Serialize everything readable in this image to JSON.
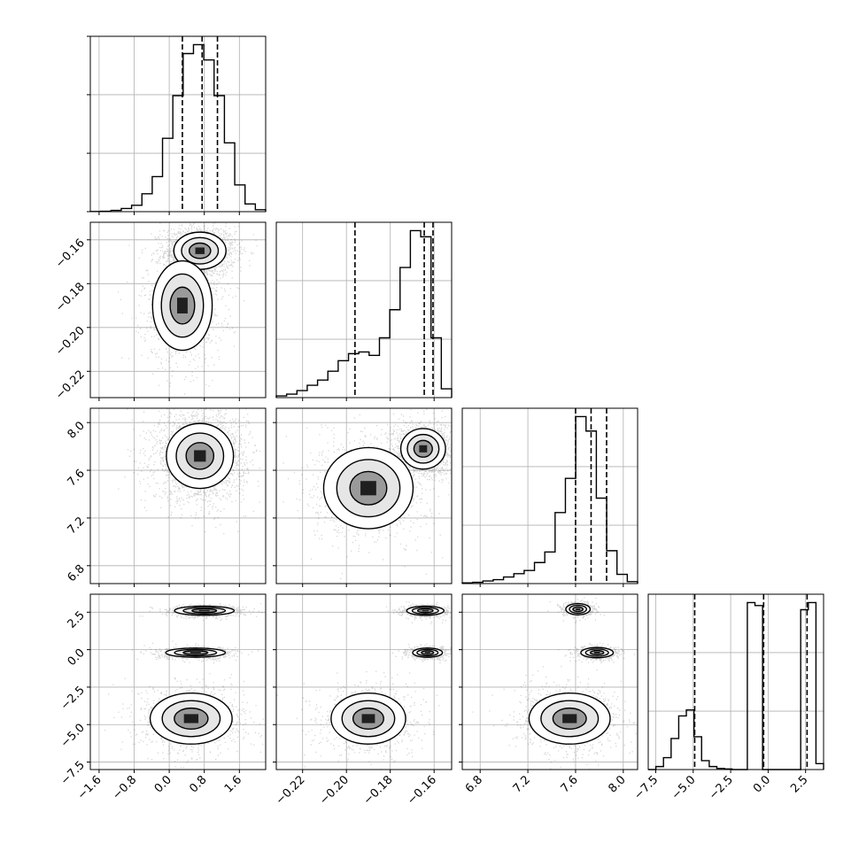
{
  "chart_data": {
    "type": "corner",
    "grid": true,
    "parameters": [
      {
        "range": [
          -1.8,
          2.2
        ],
        "ticks": [
          -1.6,
          -0.8,
          0.0,
          0.8,
          1.6
        ],
        "tick_labels": [
          "−1.6",
          "−0.8",
          "0.0",
          "0.8",
          "1.6"
        ],
        "quantiles": [
          0.3,
          0.75,
          1.1
        ],
        "histogram": [
          0.2,
          0.6,
          2,
          5,
          10,
          28,
          55,
          115,
          182,
          248,
          262,
          238,
          182,
          108,
          42,
          12,
          3
        ]
      },
      {
        "range": [
          -0.232,
          -0.152
        ],
        "ticks": [
          -0.22,
          -0.2,
          -0.18,
          -0.16
        ],
        "tick_labels": [
          "−0.22",
          "−0.20",
          "−0.18",
          "−0.16"
        ],
        "quantiles": [
          -0.1961,
          -0.1645,
          -0.1605
        ],
        "histogram": [
          2,
          4,
          8,
          14,
          20,
          30,
          42,
          50,
          52,
          48,
          68,
          100,
          148,
          190,
          183,
          68,
          10
        ]
      },
      {
        "range": [
          6.65,
          8.12
        ],
        "ticks": [
          6.8,
          7.2,
          7.6,
          8.0
        ],
        "tick_labels": [
          "6.8",
          "7.2",
          "7.6",
          "8.0"
        ],
        "quantiles": [
          7.6,
          7.73,
          7.86
        ],
        "histogram": [
          1,
          2,
          4,
          6,
          10,
          15,
          20,
          32,
          48,
          108,
          160,
          254,
          232,
          130,
          50,
          14,
          3
        ]
      },
      {
        "range": [
          -8,
          3.7
        ],
        "ticks": [
          -7.5,
          -5.0,
          -2.5,
          0.0,
          2.5
        ],
        "tick_labels": [
          "−7.5",
          "−5.0",
          "−2.5",
          "0.0",
          "2.5"
        ],
        "quantiles": [
          -4.9,
          -0.3,
          2.6
        ],
        "histogram": [
          0,
          5,
          20,
          52,
          90,
          100,
          55,
          15,
          5,
          2,
          1,
          0,
          0,
          280,
          275,
          0,
          0,
          0,
          0,
          0,
          268,
          280,
          10
        ]
      }
    ],
    "pair_density": [
      {
        "row": 1,
        "col": 0,
        "blobs": [
          {
            "mx": 0.7,
            "my": -0.165,
            "sx": 0.35,
            "sy": 0.005,
            "count": 1700
          },
          {
            "mx": 0.3,
            "my": -0.19,
            "sx": 0.4,
            "sy": 0.012,
            "count": 1000
          }
        ]
      },
      {
        "row": 2,
        "col": 0,
        "blobs": [
          {
            "mx": 0.7,
            "my": 7.72,
            "sx": 0.45,
            "sy": 0.16,
            "count": 2400
          }
        ]
      },
      {
        "row": 2,
        "col": 1,
        "blobs": [
          {
            "mx": -0.165,
            "my": 7.78,
            "sx": 0.006,
            "sy": 0.1,
            "count": 1400
          },
          {
            "mx": -0.19,
            "my": 7.45,
            "sx": 0.012,
            "sy": 0.2,
            "count": 1000
          }
        ]
      },
      {
        "row": 3,
        "col": 0,
        "blobs": [
          {
            "mx": 0.8,
            "my": 2.6,
            "sx": 0.4,
            "sy": 0.18,
            "count": 650
          },
          {
            "mx": 0.6,
            "my": -0.2,
            "sx": 0.4,
            "sy": 0.18,
            "count": 650
          },
          {
            "mx": 0.5,
            "my": -4.6,
            "sx": 0.55,
            "sy": 1.0,
            "count": 900
          }
        ]
      },
      {
        "row": 3,
        "col": 1,
        "blobs": [
          {
            "mx": -0.164,
            "my": 2.6,
            "sx": 0.005,
            "sy": 0.18,
            "count": 650
          },
          {
            "mx": -0.163,
            "my": -0.2,
            "sx": 0.004,
            "sy": 0.18,
            "count": 650
          },
          {
            "mx": -0.19,
            "my": -4.6,
            "sx": 0.01,
            "sy": 1.0,
            "count": 900
          }
        ]
      },
      {
        "row": 3,
        "col": 2,
        "blobs": [
          {
            "mx": 7.62,
            "my": 2.7,
            "sx": 0.06,
            "sy": 0.22,
            "count": 650
          },
          {
            "mx": 7.78,
            "my": -0.2,
            "sx": 0.08,
            "sy": 0.2,
            "count": 650
          },
          {
            "mx": 7.55,
            "my": -4.6,
            "sx": 0.2,
            "sy": 1.0,
            "count": 900
          }
        ]
      }
    ]
  }
}
